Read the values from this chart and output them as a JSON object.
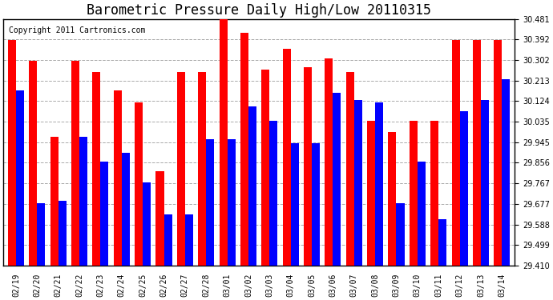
{
  "title": "Barometric Pressure Daily High/Low 20110315",
  "copyright": "Copyright 2011 Cartronics.com",
  "dates": [
    "02/19",
    "02/20",
    "02/21",
    "02/22",
    "02/23",
    "02/24",
    "02/25",
    "02/26",
    "02/27",
    "02/28",
    "03/01",
    "03/02",
    "03/03",
    "03/04",
    "03/05",
    "03/06",
    "03/07",
    "03/08",
    "03/09",
    "03/10",
    "03/11",
    "03/12",
    "03/13",
    "03/14"
  ],
  "highs": [
    30.39,
    30.3,
    29.97,
    30.3,
    30.25,
    30.17,
    30.12,
    29.82,
    30.25,
    30.25,
    30.48,
    30.42,
    30.26,
    30.35,
    30.27,
    30.31,
    30.25,
    30.04,
    29.99,
    30.04,
    30.04,
    30.39,
    30.39,
    30.39
  ],
  "lows": [
    30.17,
    29.68,
    29.69,
    29.97,
    29.86,
    29.9,
    29.77,
    29.63,
    29.63,
    29.96,
    29.96,
    30.1,
    30.04,
    29.94,
    29.94,
    30.16,
    30.13,
    30.12,
    29.68,
    29.86,
    29.61,
    30.08,
    30.13,
    30.22
  ],
  "high_color": "#ff0000",
  "low_color": "#0000ff",
  "background_color": "#ffffff",
  "grid_color": "#aaaaaa",
  "ylim_min": 29.41,
  "ylim_max": 30.481,
  "yticks": [
    29.41,
    29.499,
    29.588,
    29.677,
    29.767,
    29.856,
    29.945,
    30.035,
    30.124,
    30.213,
    30.302,
    30.392,
    30.481
  ],
  "bar_width": 0.38,
  "title_fontsize": 12,
  "tick_fontsize": 7,
  "copyright_fontsize": 7
}
